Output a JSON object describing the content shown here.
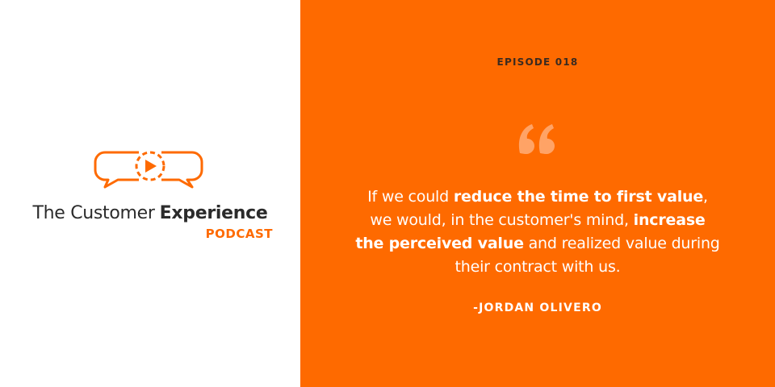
{
  "logo": {
    "title_regular": "The Customer",
    "title_bold": "Experience",
    "subtitle": "PODCAST"
  },
  "episode": "EPISODE 018",
  "quote": {
    "lines": [
      [
        {
          "text": "If we could ",
          "bold": false
        },
        {
          "text": "reduce the time to first value",
          "bold": true
        },
        {
          "text": ",",
          "bold": false
        }
      ],
      [
        {
          "text": "we would, in the customer's mind, ",
          "bold": false
        },
        {
          "text": "increase",
          "bold": true
        }
      ],
      [
        {
          "text": "the perceived value",
          "bold": true
        },
        {
          "text": " and realized value during",
          "bold": false
        }
      ],
      [
        {
          "text": "their contract with us.",
          "bold": false
        }
      ]
    ]
  },
  "author": "-JORDAN OLIVERO"
}
